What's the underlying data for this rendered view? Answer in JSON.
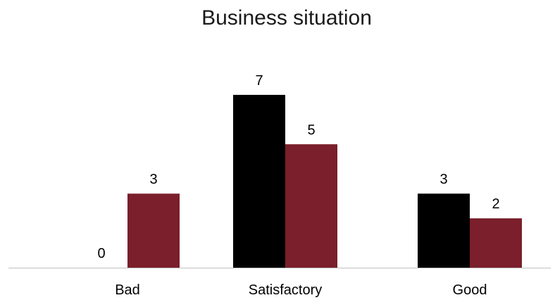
{
  "chart_data": {
    "type": "bar",
    "title": "Business situation",
    "xlabel": "",
    "ylabel": "",
    "categories": [
      "Bad",
      "Satisfactory",
      "Good"
    ],
    "series": [
      {
        "values": [
          0,
          7,
          3
        ],
        "color": "#000000"
      },
      {
        "values": [
          3,
          5,
          2
        ],
        "color": "#7a1f2b"
      }
    ],
    "ylim": [
      0,
      7.6
    ],
    "grid": false,
    "legend": "none",
    "axis_color": "#bfbfbf"
  }
}
